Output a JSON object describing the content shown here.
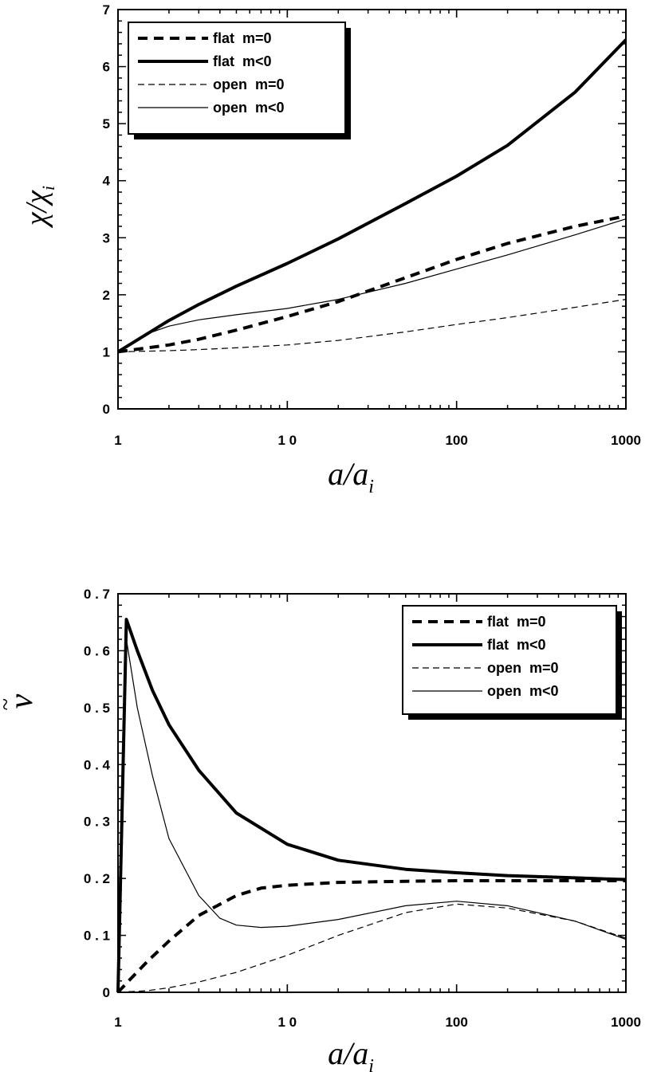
{
  "chart_data": [
    {
      "type": "line",
      "xlabel": "a/a",
      "xlabel_sub": "i",
      "ylabel": "χ/χ",
      "ylabel_sub": "i",
      "x_scale": "log",
      "xlim": [
        1,
        1000
      ],
      "ylim": [
        0,
        7
      ],
      "x_tick_labels": [
        "1",
        "1 0",
        "100",
        "1000"
      ],
      "y_tick_labels": [
        "0",
        "1",
        "2",
        "3",
        "4",
        "5",
        "6",
        "7"
      ],
      "legend_position": "top-left",
      "series": [
        {
          "name": "flat  m=0",
          "style": "thick-dashed",
          "points": [
            [
              1,
              1.0
            ],
            [
              2,
              1.12
            ],
            [
              3,
              1.22
            ],
            [
              5,
              1.38
            ],
            [
              10,
              1.62
            ],
            [
              20,
              1.88
            ],
            [
              50,
              2.3
            ],
            [
              100,
              2.62
            ],
            [
              200,
              2.9
            ],
            [
              500,
              3.2
            ],
            [
              1000,
              3.38
            ]
          ]
        },
        {
          "name": "flat  m<0",
          "style": "thick-solid",
          "points": [
            [
              1,
              1.0
            ],
            [
              2,
              1.55
            ],
            [
              3,
              1.83
            ],
            [
              5,
              2.15
            ],
            [
              10,
              2.55
            ],
            [
              20,
              2.98
            ],
            [
              50,
              3.6
            ],
            [
              100,
              4.08
            ],
            [
              200,
              4.62
            ],
            [
              500,
              5.55
            ],
            [
              1000,
              6.47
            ]
          ]
        },
        {
          "name": "open  m=0",
          "style": "thin-dashed",
          "points": [
            [
              1,
              1.0
            ],
            [
              2,
              1.02
            ],
            [
              3,
              1.04
            ],
            [
              5,
              1.07
            ],
            [
              10,
              1.12
            ],
            [
              20,
              1.2
            ],
            [
              50,
              1.35
            ],
            [
              100,
              1.48
            ],
            [
              200,
              1.6
            ],
            [
              500,
              1.78
            ],
            [
              1000,
              1.92
            ]
          ]
        },
        {
          "name": "open  m<0",
          "style": "thin-solid",
          "points": [
            [
              1,
              1.0
            ],
            [
              1.5,
              1.32
            ],
            [
              2,
              1.45
            ],
            [
              3,
              1.56
            ],
            [
              5,
              1.65
            ],
            [
              10,
              1.76
            ],
            [
              20,
              1.92
            ],
            [
              50,
              2.2
            ],
            [
              100,
              2.45
            ],
            [
              200,
              2.7
            ],
            [
              500,
              3.05
            ],
            [
              1000,
              3.33
            ]
          ]
        }
      ]
    },
    {
      "type": "line",
      "xlabel": "a/a",
      "xlabel_sub": "i",
      "ylabel": "ν",
      "ylabel_accent": "~",
      "x_scale": "log",
      "xlim": [
        1,
        1000
      ],
      "ylim": [
        0,
        0.7
      ],
      "x_tick_labels": [
        "1",
        "1 0",
        "100",
        "1000"
      ],
      "y_tick_labels": [
        "0",
        "0 . 1",
        "0 . 2",
        "0 . 3",
        "0 . 4",
        "0 . 5",
        "0 . 6",
        "0 . 7"
      ],
      "legend_position": "top-right",
      "series": [
        {
          "name": "flat  m=0",
          "style": "thick-dashed",
          "points": [
            [
              1,
              0.0
            ],
            [
              1.2,
              0.025
            ],
            [
              1.5,
              0.055
            ],
            [
              2,
              0.09
            ],
            [
              3,
              0.135
            ],
            [
              5,
              0.17
            ],
            [
              7,
              0.183
            ],
            [
              10,
              0.188
            ],
            [
              20,
              0.193
            ],
            [
              50,
              0.195
            ],
            [
              100,
              0.196
            ],
            [
              1000,
              0.196
            ]
          ]
        },
        {
          "name": "flat  m<0",
          "style": "thick-solid",
          "points": [
            [
              1,
              0.0
            ],
            [
              1.12,
              0.655
            ],
            [
              1.3,
              0.6
            ],
            [
              1.6,
              0.53
            ],
            [
              2,
              0.47
            ],
            [
              3,
              0.39
            ],
            [
              5,
              0.315
            ],
            [
              10,
              0.26
            ],
            [
              20,
              0.232
            ],
            [
              50,
              0.216
            ],
            [
              100,
              0.21
            ],
            [
              200,
              0.205
            ],
            [
              500,
              0.201
            ],
            [
              1000,
              0.198
            ]
          ]
        },
        {
          "name": "open  m=0",
          "style": "thin-dashed",
          "points": [
            [
              1,
              0.0
            ],
            [
              1.5,
              0.003
            ],
            [
              2,
              0.008
            ],
            [
              3,
              0.018
            ],
            [
              5,
              0.035
            ],
            [
              10,
              0.065
            ],
            [
              20,
              0.1
            ],
            [
              50,
              0.14
            ],
            [
              100,
              0.155
            ],
            [
              200,
              0.148
            ],
            [
              500,
              0.125
            ],
            [
              1000,
              0.095
            ]
          ]
        },
        {
          "name": "open  m<0",
          "style": "thin-solid",
          "points": [
            [
              1,
              0.0
            ],
            [
              1.12,
              0.62
            ],
            [
              1.3,
              0.5
            ],
            [
              1.6,
              0.38
            ],
            [
              2,
              0.27
            ],
            [
              3,
              0.17
            ],
            [
              4,
              0.13
            ],
            [
              5,
              0.118
            ],
            [
              7,
              0.114
            ],
            [
              10,
              0.116
            ],
            [
              20,
              0.128
            ],
            [
              50,
              0.152
            ],
            [
              100,
              0.16
            ],
            [
              200,
              0.152
            ],
            [
              500,
              0.125
            ],
            [
              1000,
              0.093
            ]
          ]
        }
      ]
    }
  ]
}
